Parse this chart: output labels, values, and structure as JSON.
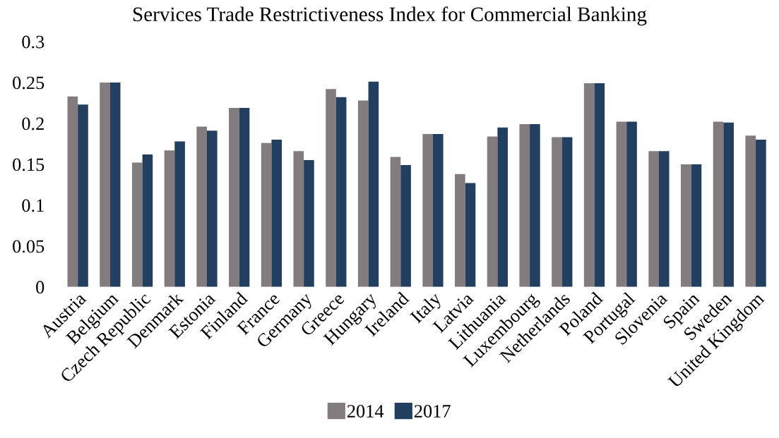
{
  "chart_data": {
    "type": "bar",
    "title": "Services Trade Restrictiveness Index for Commercial Banking",
    "categories": [
      "Austria",
      "Belgium",
      "Czech Republic",
      "Denmark",
      "Estonia",
      "Finland",
      "France",
      "Germany",
      "Greece",
      "Hungary",
      "Ireland",
      "Italy",
      "Latvia",
      "Lithuania",
      "Luxembourg",
      "Netherlands",
      "Poland",
      "Portugal",
      "Slovenia",
      "Spain",
      "Sweden",
      "United Kingdom"
    ],
    "series": [
      {
        "name": "2014",
        "color": "#837c7e",
        "values": [
          0.233,
          0.25,
          0.152,
          0.167,
          0.196,
          0.219,
          0.176,
          0.166,
          0.242,
          0.228,
          0.159,
          0.187,
          0.138,
          0.184,
          0.199,
          0.183,
          0.249,
          0.202,
          0.166,
          0.15,
          0.202,
          0.185
        ]
      },
      {
        "name": "2017",
        "color": "#233f5f",
        "values": [
          0.223,
          0.25,
          0.162,
          0.178,
          0.191,
          0.219,
          0.18,
          0.155,
          0.232,
          0.251,
          0.149,
          0.187,
          0.127,
          0.195,
          0.199,
          0.183,
          0.249,
          0.202,
          0.166,
          0.15,
          0.201,
          0.18
        ]
      }
    ],
    "ylim": [
      0,
      0.3
    ],
    "yticks": [
      0,
      0.05,
      0.1,
      0.15,
      0.2,
      0.25,
      0.3
    ],
    "grid": false,
    "legend": "bottom"
  }
}
